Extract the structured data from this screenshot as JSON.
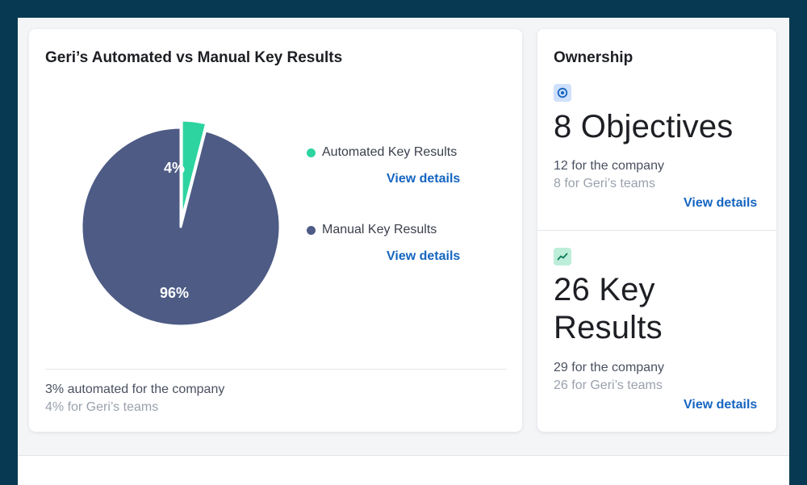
{
  "colors": {
    "background": "#073a52",
    "automated": "#2dd4a0",
    "manual": "#4d5b85",
    "link": "#1565c0"
  },
  "automation_card": {
    "title": "Geri’s Automated vs Manual Key Results",
    "legend": [
      {
        "label": "Automated Key Results",
        "link": "View details"
      },
      {
        "label": "Manual Key Results",
        "link": "View details"
      }
    ],
    "footer_company": "3% automated for the company",
    "footer_teams": "4% for Geri’s teams"
  },
  "chart_data": {
    "type": "pie",
    "categories": [
      "Automated Key Results",
      "Manual Key Results"
    ],
    "values": [
      4,
      96
    ],
    "labels": [
      "4%",
      "96%"
    ],
    "exploded": [
      "Automated Key Results"
    ]
  },
  "ownership_card": {
    "title": "Ownership",
    "objectives": {
      "icon": "target-icon",
      "headline": "8 Objectives",
      "company": "12 for the company",
      "teams": "8 for Geri’s teams",
      "link": "View details"
    },
    "key_results": {
      "icon": "trend-line-icon",
      "headline_line1": "26 Key",
      "headline_line2": "Results",
      "company": "29 for the company",
      "teams": "26 for Geri’s teams",
      "link": "View details"
    }
  }
}
